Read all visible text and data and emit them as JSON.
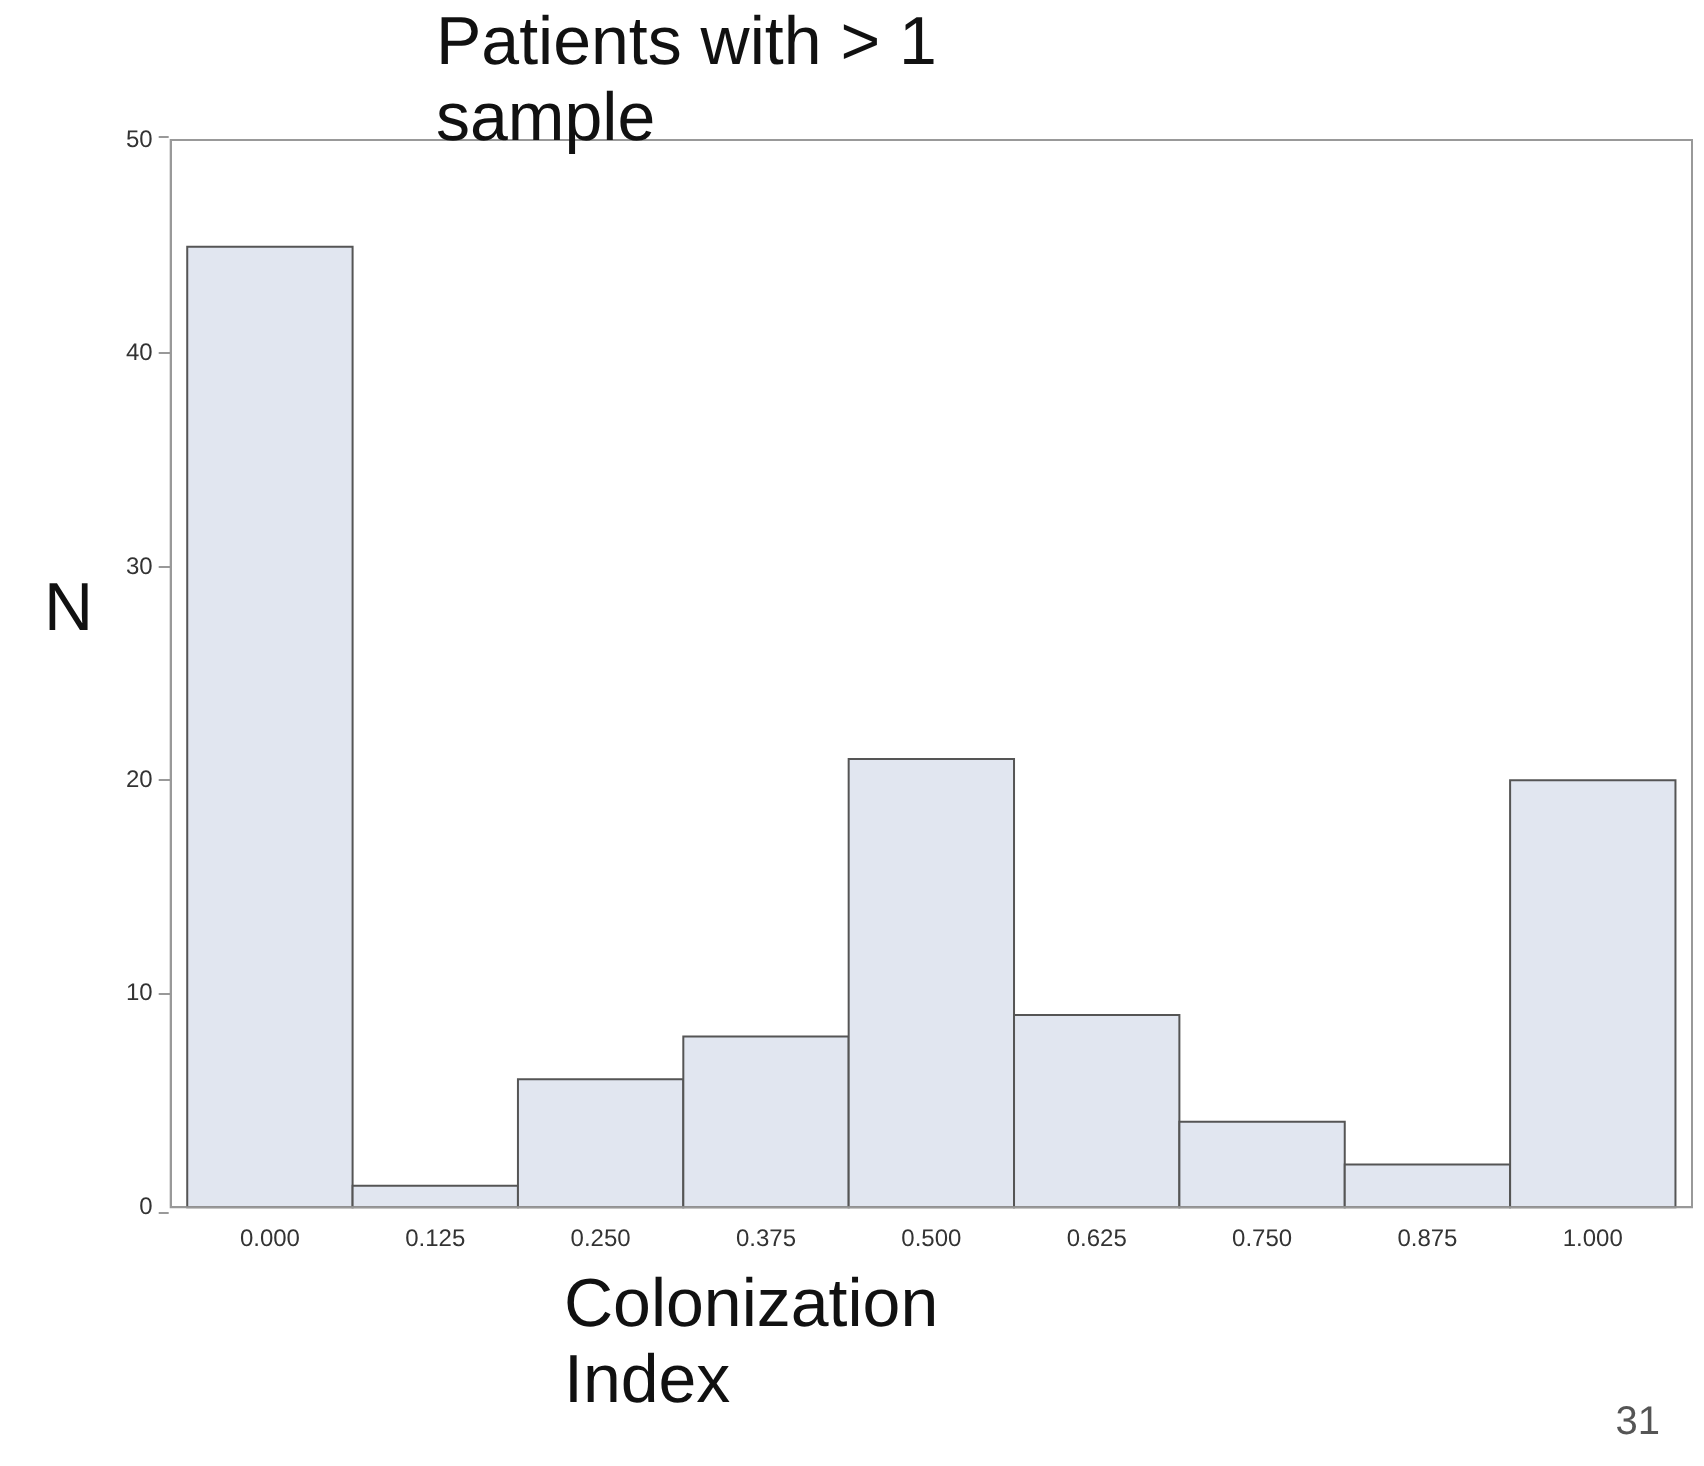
{
  "chart_data": {
    "type": "histogram",
    "title": "Patients with > 1 sample",
    "xlabel": "Colonization Index",
    "ylabel": "N",
    "bins": [
      -0.0625,
      0.0625,
      0.1875,
      0.3125,
      0.4375,
      0.5625,
      0.6875,
      0.8125,
      0.9375,
      1.0625
    ],
    "values": [
      45,
      1,
      6,
      8,
      21,
      9,
      4,
      2,
      20
    ],
    "color": "#e1e6f0",
    "xlim": [
      -0.075,
      1.075
    ],
    "xticks": [
      {
        "value": 0,
        "label": "0.000"
      },
      {
        "value": 0.125,
        "label": "0.125"
      },
      {
        "value": 0.25,
        "label": "0.250"
      },
      {
        "value": 0.375,
        "label": "0.375"
      },
      {
        "value": 0.5,
        "label": "0.500"
      },
      {
        "value": 0.625,
        "label": "0.625"
      },
      {
        "value": 0.75,
        "label": "0.750"
      },
      {
        "value": 0.875,
        "label": "0.875"
      },
      {
        "value": 1,
        "label": "1.000"
      }
    ],
    "ylim": [
      0,
      50
    ],
    "yticks": [
      0,
      10,
      20,
      30,
      40,
      50
    ],
    "grid": false,
    "legend": false,
    "annotations": [
      "31"
    ]
  }
}
